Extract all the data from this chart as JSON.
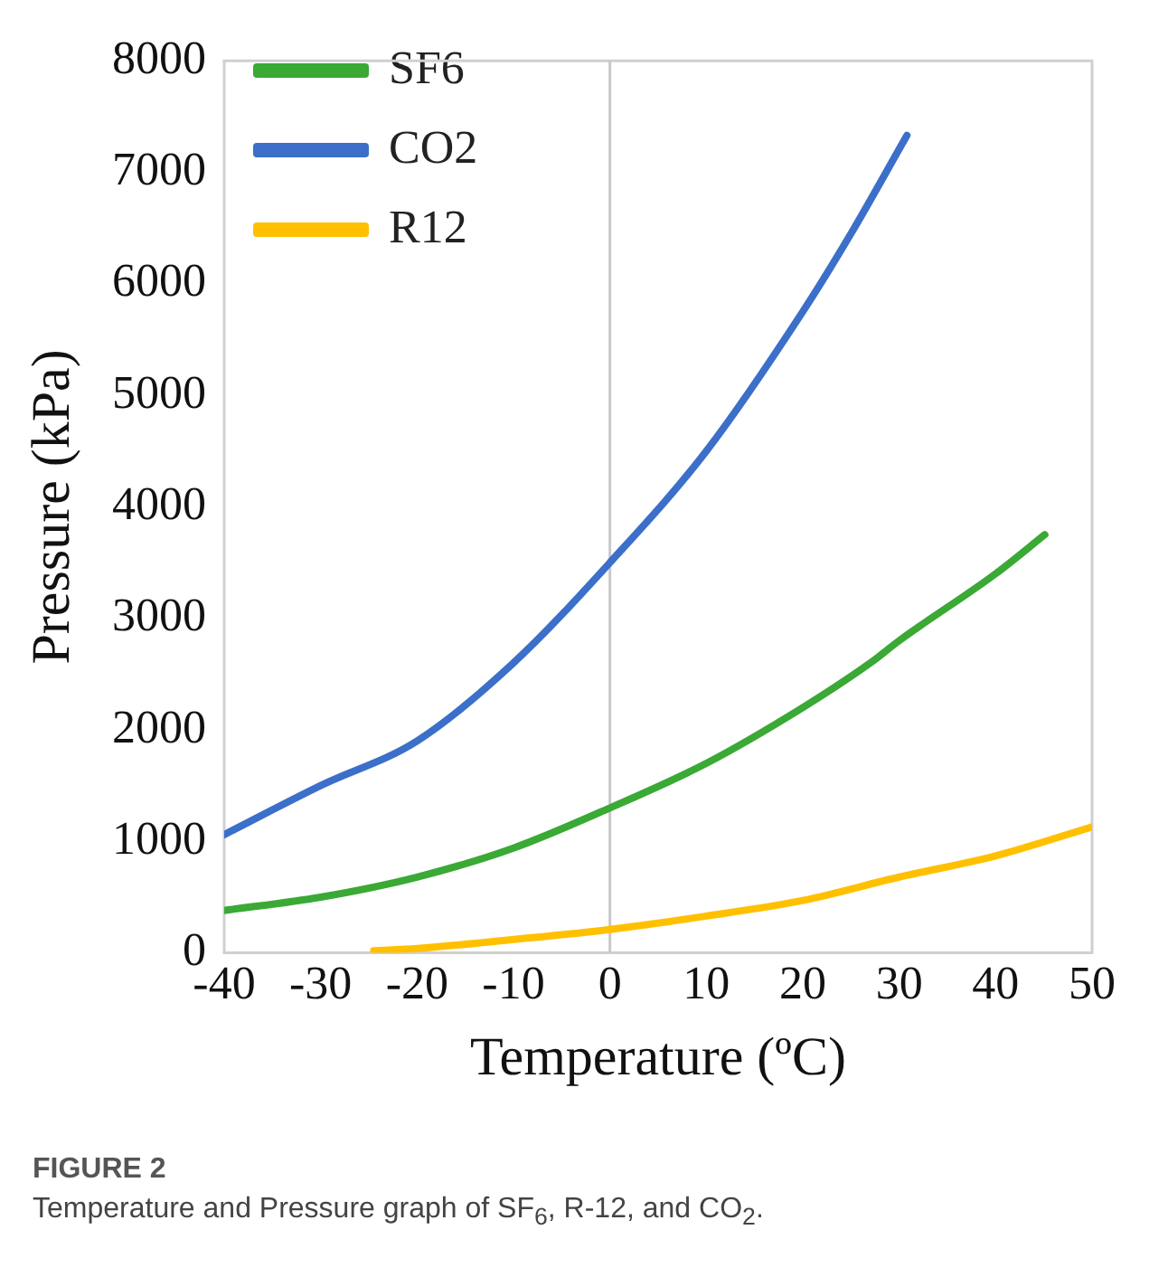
{
  "chart_data": {
    "type": "line",
    "xlabel": "Temperature (ºC)",
    "ylabel": "Pressure (kPa)",
    "xlim": [
      -40,
      50
    ],
    "xticks": [
      -40,
      -30,
      -20,
      -10,
      0,
      10,
      20,
      30,
      40,
      50
    ],
    "ylim": [
      0,
      8000
    ],
    "yticks": [
      0,
      1000,
      2000,
      3000,
      4000,
      5000,
      6000,
      7000,
      8000
    ],
    "grid": false,
    "legend": "top left",
    "marker": "none",
    "line_style": "solid",
    "ref_lines": [
      {
        "axis": "x",
        "value": 0,
        "color": "#c8c8c8"
      }
    ],
    "series": [
      {
        "name": "SF6",
        "color": "#3aa935",
        "x": [
          -40,
          -30,
          -20,
          -10,
          0,
          10,
          20,
          27,
          30,
          40,
          45.1
        ],
        "values": [
          380,
          500,
          680,
          940,
          1300,
          1700,
          2200,
          2600,
          2800,
          3400,
          3750
        ]
      },
      {
        "name": "CO2",
        "color": "#3b6fc9",
        "x": [
          -40,
          -30,
          -20,
          -10,
          0,
          10,
          20,
          25,
          30.8
        ],
        "values": [
          1060,
          1500,
          1900,
          2600,
          3500,
          4500,
          5750,
          6450,
          7330
        ]
      },
      {
        "name": "R12",
        "color": "#ffc000",
        "x": [
          -24.5,
          -20,
          -10,
          0,
          10,
          20,
          30,
          40,
          50
        ],
        "values": [
          20,
          40,
          120,
          210,
          330,
          470,
          680,
          870,
          1130
        ]
      }
    ],
    "annotations": [
      "FIGURE 2",
      "Temperature and Pressure graph of SF$_{6}$, R-12, and CO$_{2}$."
    ]
  }
}
